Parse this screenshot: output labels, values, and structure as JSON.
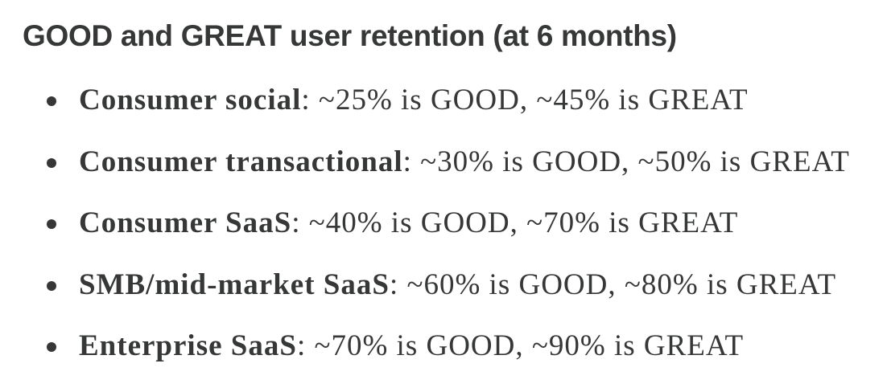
{
  "header": {
    "title": "GOOD and GREAT user retention (at 6 months)"
  },
  "list": [
    {
      "label": "Consumer social",
      "text": ": ~25% is GOOD, ~45% is GREAT"
    },
    {
      "label": "Consumer transactional",
      "text": ": ~30% is GOOD, ~50% is GREAT"
    },
    {
      "label": "Consumer SaaS",
      "text": ": ~40% is GOOD, ~70% is GREAT"
    },
    {
      "label": "SMB/mid-market SaaS",
      "text": ": ~60% is GOOD, ~80% is GREAT"
    },
    {
      "label": "Enterprise SaaS",
      "text": ": ~70% is GOOD, ~90% is GREAT"
    }
  ]
}
